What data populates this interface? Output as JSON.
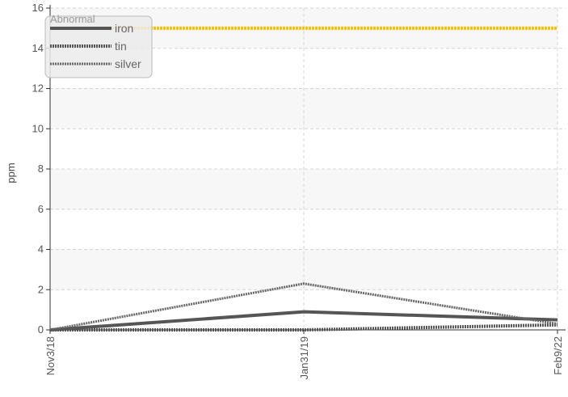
{
  "chart_data": {
    "type": "line",
    "title": "",
    "xlabel": "",
    "ylabel": "ppm",
    "categories": [
      "Nov3/18",
      "Jan31/19",
      "Feb9/22"
    ],
    "ylim": [
      0,
      16
    ],
    "yticks": [
      0,
      2,
      4,
      6,
      8,
      10,
      12,
      14,
      16
    ],
    "grid": true,
    "legend_position": "top-left",
    "series": [
      {
        "name": "iron",
        "values": [
          0,
          0.9,
          0.5
        ],
        "color": "#555555",
        "style": "solid"
      },
      {
        "name": "tin",
        "values": [
          0,
          0.0,
          0.25
        ],
        "color": "#555555",
        "style": "dotted-thick"
      },
      {
        "name": "silver",
        "values": [
          0,
          2.3,
          0.3
        ],
        "color": "#666666",
        "style": "dashed"
      }
    ],
    "threshold": {
      "name": "Abnormal",
      "value": 15,
      "color": "#f5c200"
    },
    "colors": {
      "band_alt": "#f7f7f7",
      "grid": "#d4d4d4",
      "axis": "#333333",
      "tick_text": "#555555"
    }
  }
}
